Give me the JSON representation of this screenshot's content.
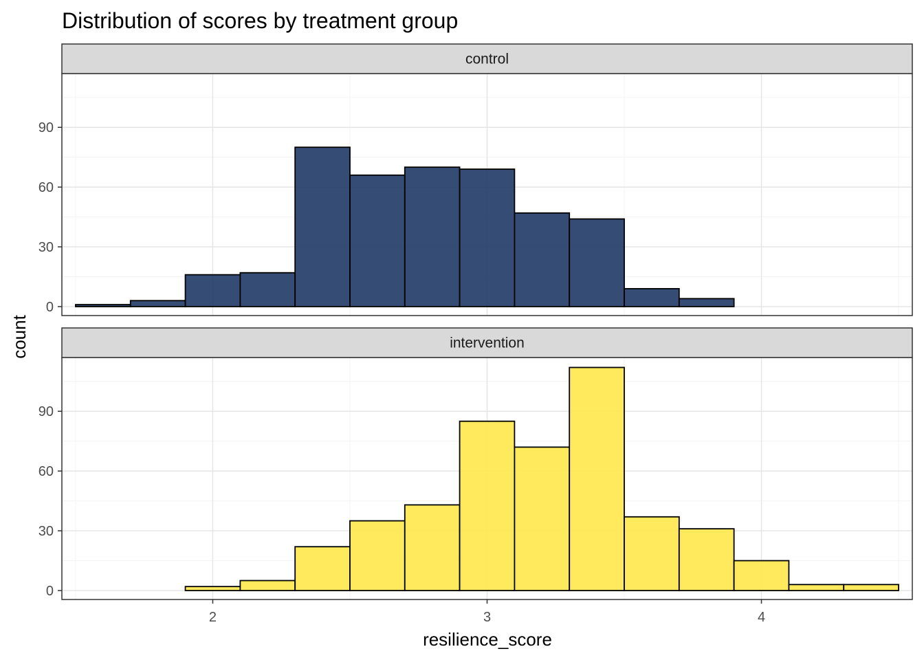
{
  "chart_data": {
    "type": "bar",
    "title": "Distribution of scores by treatment group",
    "xlabel": "resilience_score",
    "ylabel": "count",
    "xlim": [
      1.45,
      4.55
    ],
    "ylim": [
      -4.5,
      117
    ],
    "bin_edges": [
      1.5,
      1.7,
      1.9,
      2.1,
      2.3,
      2.5,
      2.7,
      2.9,
      3.1,
      3.3,
      3.5,
      3.7,
      3.9,
      4.1,
      4.3,
      4.5
    ],
    "x_ticks": [
      2,
      3,
      4
    ],
    "y_ticks": [
      0,
      30,
      60,
      90
    ],
    "grid": true,
    "legend": "none",
    "panels": [
      {
        "label": "control",
        "color": "#1f3a66",
        "values": [
          1,
          3,
          16,
          17,
          80,
          66,
          70,
          69,
          47,
          44,
          9,
          4,
          0,
          0,
          0
        ]
      },
      {
        "label": "intervention",
        "color": "#ffe84d",
        "values": [
          0,
          0,
          2,
          5,
          22,
          35,
          43,
          85,
          72,
          112,
          37,
          31,
          15,
          3,
          3
        ]
      }
    ]
  }
}
